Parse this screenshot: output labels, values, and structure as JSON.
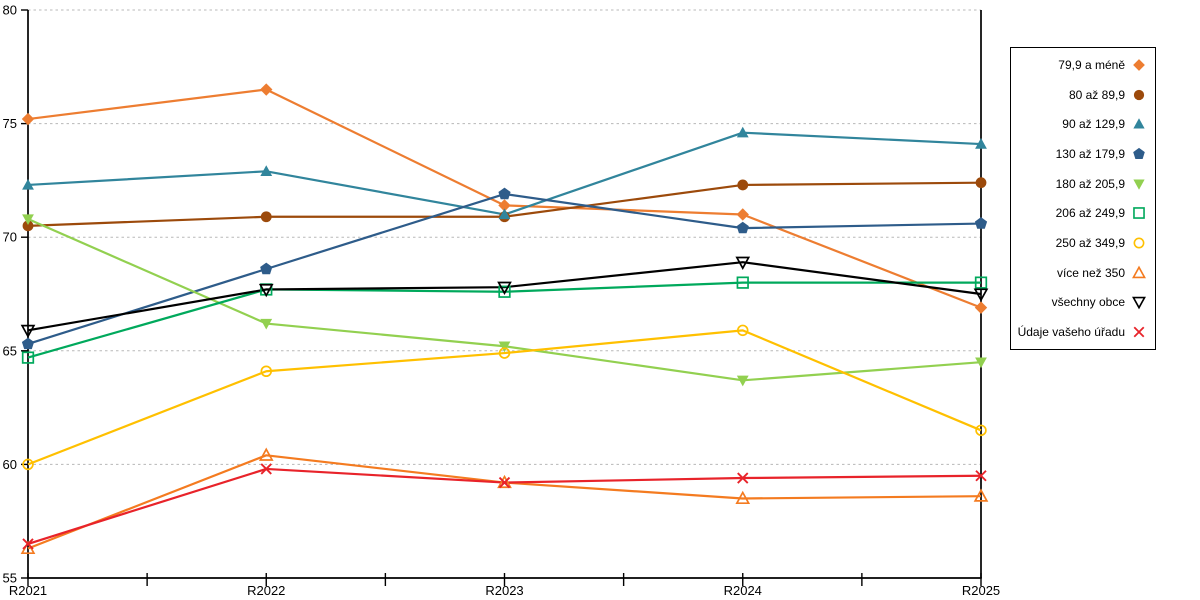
{
  "chart_data": {
    "type": "line",
    "title": "",
    "xlabel": "",
    "ylabel": "",
    "categories": [
      "R2021",
      "R2022",
      "R2023",
      "R2024",
      "R2025"
    ],
    "ylim": [
      55,
      80
    ],
    "yticks": [
      "55",
      "60",
      "65",
      "70",
      "75",
      "80"
    ],
    "grid": "horizontal-dashed",
    "legend_position": "right-box",
    "series": [
      {
        "name": "79,9 a méně",
        "color": "#ED7D31",
        "marker": "diamond",
        "values": [
          75.2,
          76.5,
          71.4,
          71.0,
          66.9
        ]
      },
      {
        "name": "80 až 89,9",
        "color": "#9C4A0B",
        "marker": "circle",
        "values": [
          70.5,
          70.9,
          70.9,
          72.3,
          72.4
        ]
      },
      {
        "name": "90 až 129,9",
        "color": "#31859C",
        "marker": "triangle-up",
        "values": [
          72.3,
          72.9,
          71.0,
          74.6,
          74.1
        ]
      },
      {
        "name": "130 až 179,9",
        "color": "#2E5C8A",
        "marker": "pentagon",
        "values": [
          65.3,
          68.6,
          71.9,
          70.4,
          70.6
        ]
      },
      {
        "name": "180 až 205,9",
        "color": "#92D050",
        "marker": "triangle-down",
        "values": [
          70.8,
          66.2,
          65.2,
          63.7,
          64.5
        ]
      },
      {
        "name": "206 až 249,9",
        "color": "#00A95C",
        "marker": "square-open",
        "values": [
          64.7,
          67.7,
          67.6,
          68.0,
          68.0
        ]
      },
      {
        "name": "250 až 349,9",
        "color": "#FFC000",
        "marker": "circle-open",
        "values": [
          60.0,
          64.1,
          64.9,
          65.9,
          61.5
        ]
      },
      {
        "name": "více než 350",
        "color": "#F47B20",
        "marker": "triangle-up-open",
        "values": [
          56.3,
          60.4,
          59.2,
          58.5,
          58.6
        ]
      },
      {
        "name": "všechny obce",
        "color": "#000000",
        "marker": "triangle-down-open",
        "values": [
          65.9,
          67.7,
          67.8,
          68.9,
          67.5
        ]
      },
      {
        "name": "Údaje vašeho úřadu",
        "color": "#E8232A",
        "marker": "x",
        "values": [
          56.5,
          59.8,
          59.2,
          59.4,
          59.5
        ]
      }
    ]
  },
  "style": {
    "grid_color": "#B8B8B8",
    "axis_color": "#000000",
    "background": "#FFFFFF",
    "legend_border": "#000000"
  }
}
